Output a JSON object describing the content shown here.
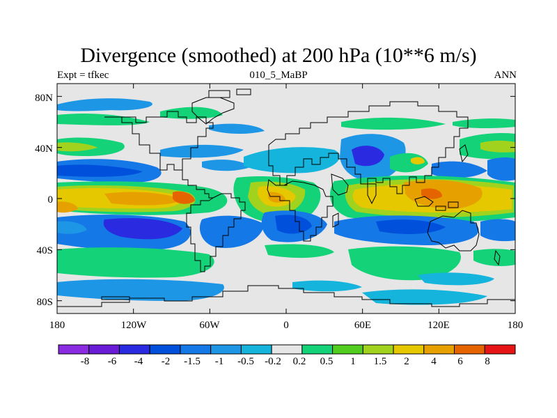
{
  "title": "Divergence (smoothed) at 200 hPa (10**6 m/s)",
  "subtitle_left": "Expt = tfkec",
  "subtitle_center": "010_5_MaBP",
  "subtitle_right": "ANN",
  "map": {
    "lat_labels": [
      "80N",
      "40N",
      "0",
      "40S",
      "80S"
    ],
    "lat_values": [
      80,
      40,
      0,
      -40,
      -80
    ],
    "lon_labels": [
      "180",
      "120W",
      "60W",
      "0",
      "60E",
      "120E",
      "180"
    ],
    "lon_values": [
      -180,
      -120,
      -60,
      0,
      60,
      120,
      180
    ],
    "lat_range": [
      -90,
      90
    ],
    "lon_range": [
      -180,
      180
    ],
    "neutral_fill": "#e6e6e6"
  },
  "colorbar": {
    "colors": [
      "#8a2be2",
      "#6a1bd6",
      "#2a2ae0",
      "#0050dc",
      "#1478e6",
      "#1e96e6",
      "#14b4dc",
      "#e6e6e6",
      "#14d278",
      "#50cd1e",
      "#a0d21e",
      "#e6c800",
      "#e6a000",
      "#e66400",
      "#e61414"
    ],
    "labels": [
      "-8",
      "-6",
      "-4",
      "-2",
      "-1.5",
      "-1",
      "-0.5",
      "-0.2",
      "0.2",
      "0.5",
      "1",
      "1.5",
      "2",
      "4",
      "6",
      "8"
    ]
  }
}
